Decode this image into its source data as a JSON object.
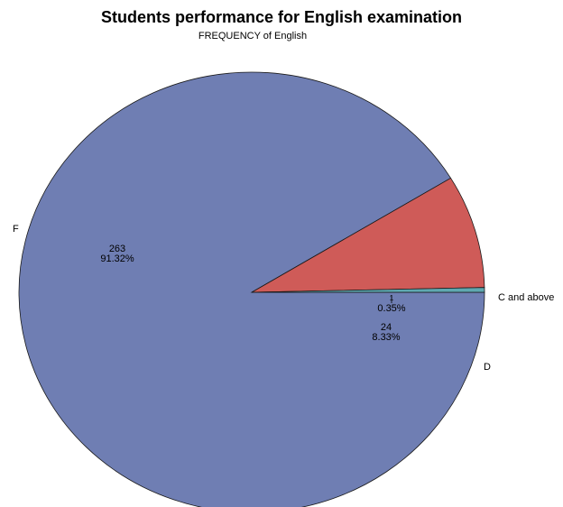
{
  "chart_data": {
    "type": "pie",
    "title": "Students performance for English examination",
    "subtitle": "FREQUENCY of English",
    "slices": [
      {
        "label": "F",
        "count": "263",
        "percent": "91.32%",
        "value": 263,
        "color": "#6f7eb3"
      },
      {
        "label": "D",
        "count": "24",
        "percent": "8.33%",
        "value": 24,
        "color": "#cf5b58"
      },
      {
        "label": "C and above",
        "count": "1",
        "percent": "0.35%",
        "value": 1,
        "color": "#5fa8b0"
      }
    ],
    "start_angle_deg": 0,
    "direction": "clockwise"
  }
}
